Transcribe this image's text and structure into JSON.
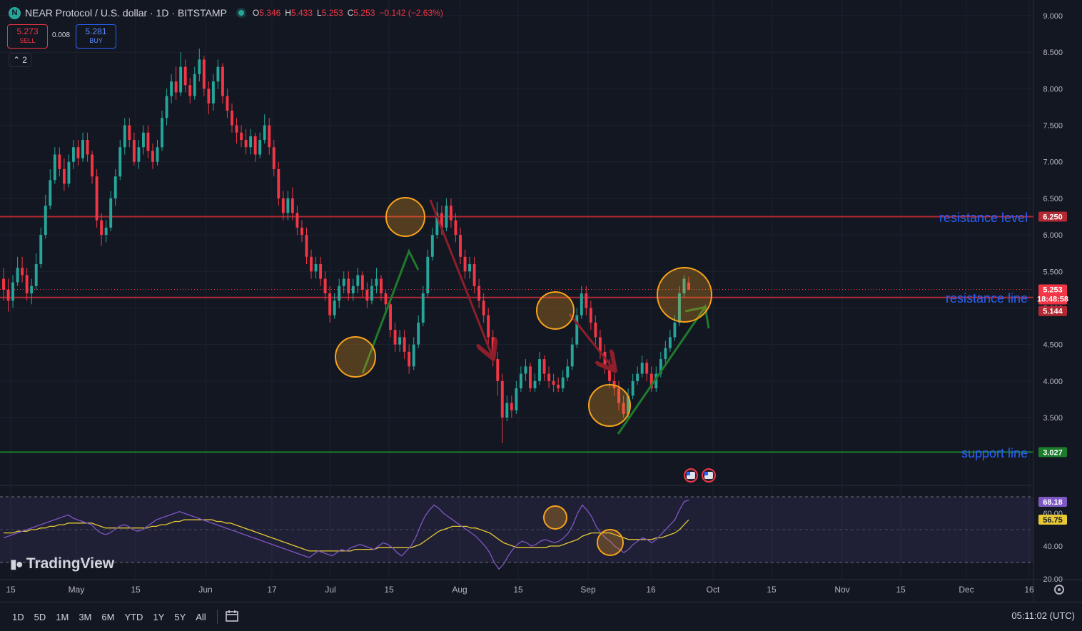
{
  "header": {
    "logo_letter": "N",
    "symbol_title": "NEAR Protocol / U.S. dollar · 1D · BITSTAMP",
    "open_label": "O",
    "open": "5.346",
    "high_label": "H",
    "high": "5.433",
    "low_label": "L",
    "low": "5.253",
    "close_label": "C",
    "close": "5.253",
    "change": "−0.142 (−2.63%)"
  },
  "trade": {
    "sell_price": "5.273",
    "sell_label": "SELL",
    "spread": "0.008",
    "buy_price": "5.281",
    "buy_label": "BUY"
  },
  "indicator_collapse": {
    "icon": "chevron-up-icon",
    "count": "2"
  },
  "watermark": {
    "icon": "tradingview-logo-icon",
    "text": "TradingView"
  },
  "bottom_bar": {
    "timeframes": [
      "1D",
      "5D",
      "1M",
      "3M",
      "6M",
      "YTD",
      "1Y",
      "5Y",
      "All"
    ],
    "compare_icon": "calendar-range-icon",
    "clock": "05:11:02 (UTC)"
  },
  "colors": {
    "up": "#26a69a",
    "down": "#f23645",
    "bg": "#131722",
    "grid": "#1e222d",
    "resistance": "#b22833",
    "support": "#1b7c2c",
    "annotation_text": "#2962ff",
    "circle": "#f7a21b",
    "rsi": "#7e57c2",
    "rsi_ma": "#e6c935"
  },
  "chart_data": [
    {
      "type": "candlestick",
      "x_ticks": [
        "15",
        "May",
        "15",
        "Jun",
        "17",
        "Jul",
        "15",
        "Aug",
        "15",
        "Sep",
        "16",
        "Oct",
        "15",
        "Nov",
        "15",
        "Dec",
        "16"
      ],
      "y_ticks": [
        "9.000",
        "8.500",
        "8.000",
        "7.500",
        "7.000",
        "6.500",
        "6.000",
        "5.500",
        "5.000",
        "4.500",
        "4.000",
        "3.500"
      ],
      "ylim": [
        3.0,
        9.0
      ],
      "last_price": "5.253",
      "countdown": "18:48:58",
      "levels": [
        {
          "name": "resistance level",
          "value": 6.25,
          "label": "6.250"
        },
        {
          "name": "resistance line",
          "value": 5.144,
          "label": "5.144"
        },
        {
          "name": "support line",
          "value": 3.027,
          "label": "3.027"
        }
      ],
      "candles": [
        [
          5.4,
          5.25,
          5.55,
          5.1
        ],
        [
          5.25,
          5.1,
          5.4,
          4.95
        ],
        [
          5.1,
          5.35,
          5.45,
          5.0
        ],
        [
          5.35,
          5.55,
          5.7,
          5.3
        ],
        [
          5.55,
          5.45,
          5.7,
          5.35
        ],
        [
          5.45,
          5.2,
          5.55,
          5.1
        ],
        [
          5.2,
          5.3,
          5.4,
          5.05
        ],
        [
          5.3,
          5.6,
          5.75,
          5.25
        ],
        [
          5.6,
          6.0,
          6.1,
          5.55
        ],
        [
          6.0,
          6.4,
          6.55,
          5.95
        ],
        [
          6.4,
          6.75,
          6.9,
          6.35
        ],
        [
          6.75,
          7.1,
          7.2,
          6.7
        ],
        [
          7.1,
          6.9,
          7.2,
          6.8
        ],
        [
          6.9,
          6.7,
          7.05,
          6.6
        ],
        [
          6.7,
          7.0,
          7.1,
          6.65
        ],
        [
          7.0,
          7.2,
          7.3,
          6.9
        ],
        [
          7.2,
          7.05,
          7.3,
          6.95
        ],
        [
          7.05,
          7.3,
          7.4,
          7.0
        ],
        [
          7.3,
          7.1,
          7.4,
          7.0
        ],
        [
          7.1,
          6.8,
          7.15,
          6.7
        ],
        [
          6.8,
          6.2,
          6.9,
          6.1
        ],
        [
          6.2,
          6.0,
          6.3,
          5.85
        ],
        [
          6.0,
          6.1,
          6.2,
          5.9
        ],
        [
          6.1,
          6.5,
          6.6,
          6.05
        ],
        [
          6.5,
          6.8,
          6.9,
          6.4
        ],
        [
          6.8,
          7.2,
          7.3,
          6.75
        ],
        [
          7.2,
          7.5,
          7.6,
          7.1
        ],
        [
          7.5,
          7.3,
          7.6,
          7.2
        ],
        [
          7.3,
          7.0,
          7.4,
          6.95
        ],
        [
          7.0,
          7.2,
          7.3,
          6.9
        ],
        [
          7.2,
          7.4,
          7.5,
          7.1
        ],
        [
          7.4,
          7.15,
          7.5,
          7.05
        ],
        [
          7.15,
          7.0,
          7.25,
          6.9
        ],
        [
          7.0,
          7.2,
          7.3,
          6.95
        ],
        [
          7.2,
          7.6,
          7.7,
          7.15
        ],
        [
          7.6,
          7.9,
          8.0,
          7.5
        ],
        [
          7.9,
          8.1,
          8.2,
          7.8
        ],
        [
          8.1,
          7.95,
          8.3,
          7.85
        ],
        [
          7.95,
          8.3,
          8.5,
          7.9
        ],
        [
          8.3,
          8.05,
          8.4,
          7.95
        ],
        [
          8.05,
          7.9,
          8.15,
          7.8
        ],
        [
          7.9,
          8.2,
          8.3,
          7.85
        ],
        [
          8.2,
          8.4,
          8.55,
          8.1
        ],
        [
          8.4,
          8.0,
          8.45,
          7.9
        ],
        [
          8.0,
          7.8,
          8.1,
          7.65
        ],
        [
          7.8,
          8.1,
          8.2,
          7.7
        ],
        [
          8.1,
          8.3,
          8.4,
          8.0
        ],
        [
          8.3,
          7.9,
          8.35,
          7.8
        ],
        [
          7.9,
          7.7,
          8.0,
          7.6
        ],
        [
          7.7,
          7.5,
          7.8,
          7.4
        ],
        [
          7.5,
          7.4,
          7.6,
          7.25
        ],
        [
          7.4,
          7.3,
          7.5,
          7.2
        ],
        [
          7.3,
          7.2,
          7.45,
          7.1
        ],
        [
          7.2,
          7.35,
          7.45,
          7.1
        ],
        [
          7.35,
          7.1,
          7.4,
          7.0
        ],
        [
          7.1,
          7.3,
          7.4,
          7.05
        ],
        [
          7.3,
          7.5,
          7.65,
          7.25
        ],
        [
          7.5,
          7.2,
          7.6,
          7.1
        ],
        [
          7.2,
          6.9,
          7.3,
          6.8
        ],
        [
          6.9,
          6.5,
          7.0,
          6.4
        ],
        [
          6.5,
          6.3,
          6.6,
          6.2
        ],
        [
          6.3,
          6.5,
          6.6,
          6.2
        ],
        [
          6.5,
          6.3,
          6.65,
          6.2
        ],
        [
          6.3,
          6.1,
          6.4,
          6.0
        ],
        [
          6.1,
          6.0,
          6.2,
          5.9
        ],
        [
          6.0,
          5.7,
          6.1,
          5.6
        ],
        [
          5.7,
          5.5,
          5.8,
          5.4
        ],
        [
          5.5,
          5.6,
          5.7,
          5.4
        ],
        [
          5.6,
          5.4,
          5.7,
          5.3
        ],
        [
          5.4,
          5.2,
          5.5,
          5.1
        ],
        [
          5.2,
          4.9,
          5.3,
          4.8
        ],
        [
          4.9,
          5.1,
          5.2,
          4.85
        ],
        [
          5.1,
          5.3,
          5.4,
          5.0
        ],
        [
          5.3,
          5.4,
          5.5,
          5.2
        ],
        [
          5.4,
          5.2,
          5.5,
          5.1
        ],
        [
          5.2,
          5.3,
          5.4,
          5.1
        ],
        [
          5.3,
          5.45,
          5.55,
          5.2
        ],
        [
          5.45,
          5.25,
          5.5,
          5.15
        ],
        [
          5.25,
          5.1,
          5.35,
          5.0
        ],
        [
          5.1,
          5.3,
          5.4,
          5.05
        ],
        [
          5.3,
          5.4,
          5.55,
          5.2
        ],
        [
          5.4,
          5.2,
          5.45,
          5.1
        ],
        [
          5.2,
          5.05,
          5.25,
          4.95
        ],
        [
          5.05,
          4.7,
          5.1,
          4.6
        ],
        [
          4.7,
          4.5,
          4.8,
          4.4
        ],
        [
          4.5,
          4.6,
          4.7,
          4.4
        ],
        [
          4.6,
          4.4,
          4.7,
          4.3
        ],
        [
          4.4,
          4.2,
          4.5,
          4.1
        ],
        [
          4.2,
          4.5,
          4.6,
          4.15
        ],
        [
          4.5,
          4.8,
          4.9,
          4.45
        ],
        [
          4.8,
          5.2,
          5.3,
          4.75
        ],
        [
          5.2,
          5.7,
          5.8,
          5.15
        ],
        [
          5.7,
          6.0,
          6.1,
          5.65
        ],
        [
          6.0,
          6.3,
          6.45,
          5.95
        ],
        [
          6.3,
          6.1,
          6.4,
          6.0
        ],
        [
          6.1,
          6.4,
          6.5,
          6.05
        ],
        [
          6.4,
          6.2,
          6.5,
          6.1
        ],
        [
          6.2,
          6.0,
          6.3,
          5.9
        ],
        [
          6.0,
          5.7,
          6.1,
          5.6
        ],
        [
          5.7,
          5.5,
          5.8,
          5.4
        ],
        [
          5.5,
          5.6,
          5.7,
          5.4
        ],
        [
          5.6,
          5.3,
          5.7,
          5.2
        ],
        [
          5.3,
          5.1,
          5.4,
          5.0
        ],
        [
          5.1,
          4.9,
          5.2,
          4.8
        ],
        [
          4.9,
          4.6,
          5.0,
          4.5
        ],
        [
          4.6,
          4.3,
          4.7,
          4.2
        ],
        [
          4.3,
          4.0,
          4.4,
          3.8
        ],
        [
          4.0,
          3.5,
          4.1,
          3.15
        ],
        [
          3.5,
          3.7,
          3.8,
          3.45
        ],
        [
          3.7,
          3.6,
          3.8,
          3.5
        ],
        [
          3.6,
          3.9,
          4.0,
          3.55
        ],
        [
          3.9,
          4.1,
          4.2,
          3.85
        ],
        [
          4.1,
          4.2,
          4.3,
          4.0
        ],
        [
          4.2,
          3.9,
          4.25,
          3.85
        ],
        [
          3.9,
          4.0,
          4.1,
          3.85
        ],
        [
          4.0,
          4.3,
          4.4,
          3.95
        ],
        [
          4.3,
          4.1,
          4.35,
          4.0
        ],
        [
          4.1,
          4.0,
          4.2,
          3.9
        ],
        [
          4.0,
          3.95,
          4.1,
          3.85
        ],
        [
          3.95,
          3.9,
          4.05,
          3.85
        ],
        [
          3.9,
          4.05,
          4.15,
          3.85
        ],
        [
          4.05,
          4.2,
          4.3,
          4.0
        ],
        [
          4.2,
          4.5,
          4.6,
          4.15
        ],
        [
          4.5,
          4.9,
          5.0,
          4.45
        ],
        [
          4.9,
          5.2,
          5.3,
          4.85
        ],
        [
          5.2,
          5.0,
          5.3,
          4.9
        ],
        [
          5.0,
          4.8,
          5.1,
          4.7
        ],
        [
          4.8,
          4.6,
          4.9,
          4.5
        ],
        [
          4.6,
          4.4,
          4.7,
          4.3
        ],
        [
          4.4,
          4.2,
          4.5,
          4.1
        ],
        [
          4.2,
          4.0,
          4.3,
          3.9
        ],
        [
          4.0,
          3.9,
          4.1,
          3.8
        ],
        [
          3.9,
          3.7,
          4.0,
          3.6
        ],
        [
          3.7,
          3.55,
          3.8,
          3.5
        ],
        [
          3.55,
          3.8,
          3.9,
          3.5
        ],
        [
          3.8,
          4.0,
          4.1,
          3.75
        ],
        [
          4.0,
          4.1,
          4.2,
          3.95
        ],
        [
          4.1,
          4.25,
          4.35,
          4.05
        ],
        [
          4.25,
          4.1,
          4.3,
          4.0
        ],
        [
          4.1,
          3.9,
          4.2,
          3.85
        ],
        [
          3.9,
          4.1,
          4.2,
          3.85
        ],
        [
          4.1,
          4.3,
          4.4,
          4.05
        ],
        [
          4.3,
          4.45,
          4.55,
          4.25
        ],
        [
          4.45,
          4.6,
          4.7,
          4.4
        ],
        [
          4.6,
          4.8,
          4.9,
          4.55
        ],
        [
          4.8,
          5.2,
          5.3,
          4.75
        ],
        [
          5.2,
          5.4,
          5.45,
          5.15
        ],
        [
          5.35,
          5.25,
          5.43,
          5.25
        ]
      ]
    },
    {
      "type": "line",
      "name": "RSI",
      "y_ticks": [
        "60.00",
        "40.00",
        "20.00"
      ],
      "ylim": [
        20,
        80
      ],
      "band": [
        30,
        70
      ],
      "rsi_value": "68.18",
      "ma_value": "56.75",
      "values": [
        45,
        46,
        47,
        48,
        49,
        50,
        51,
        52,
        53,
        54,
        55,
        56,
        57,
        58,
        59,
        57,
        56,
        55,
        54,
        53,
        50,
        48,
        47,
        48,
        50,
        52,
        53,
        52,
        50,
        49,
        50,
        52,
        54,
        56,
        57,
        58,
        59,
        60,
        61,
        60,
        59,
        58,
        57,
        56,
        55,
        54,
        53,
        52,
        51,
        50,
        49,
        48,
        47,
        46,
        45,
        44,
        43,
        42,
        41,
        40,
        39,
        38,
        37,
        36,
        35,
        34,
        33,
        35,
        37,
        36,
        35,
        34,
        36,
        38,
        37,
        39,
        40,
        41,
        40,
        39,
        38,
        40,
        42,
        41,
        39,
        36,
        34,
        37,
        40,
        45,
        52,
        58,
        62,
        65,
        63,
        60,
        58,
        56,
        54,
        52,
        50,
        48,
        46,
        43,
        40,
        36,
        30,
        26,
        29,
        34,
        38,
        41,
        43,
        42,
        40,
        41,
        43,
        44,
        43,
        42,
        43,
        45,
        48,
        53,
        60,
        65,
        62,
        58,
        52,
        48,
        45,
        43,
        40,
        38,
        36,
        38,
        41,
        43,
        45,
        44,
        42,
        44,
        47,
        50,
        53,
        56,
        62,
        67,
        68
      ],
      "ma_values": [
        48,
        48,
        48,
        49,
        49,
        49,
        50,
        50,
        51,
        51,
        52,
        52,
        53,
        53,
        54,
        54,
        54,
        54,
        54,
        54,
        53,
        52,
        51,
        51,
        51,
        51,
        51,
        51,
        51,
        51,
        51,
        51,
        52,
        52,
        53,
        53,
        54,
        55,
        55,
        56,
        56,
        56,
        56,
        56,
        56,
        56,
        55,
        55,
        54,
        54,
        53,
        52,
        51,
        50,
        49,
        48,
        47,
        46,
        45,
        44,
        43,
        42,
        41,
        40,
        39,
        38,
        37,
        37,
        37,
        37,
        37,
        37,
        37,
        37,
        37,
        37,
        38,
        38,
        38,
        38,
        38,
        39,
        39,
        39,
        39,
        39,
        39,
        39,
        39,
        40,
        41,
        43,
        45,
        47,
        49,
        50,
        51,
        52,
        52,
        52,
        52,
        51,
        51,
        50,
        49,
        48,
        46,
        44,
        42,
        41,
        40,
        39,
        39,
        39,
        39,
        39,
        39,
        39,
        40,
        40,
        40,
        41,
        42,
        43,
        44,
        46,
        47,
        48,
        48,
        48,
        48,
        48,
        47,
        46,
        45,
        44,
        44,
        44,
        44,
        44,
        44,
        45,
        45,
        46,
        47,
        48,
        50,
        53,
        56
      ]
    }
  ],
  "annotations": {
    "resistance_level_text": "resistance level",
    "resistance_line_text": "resistance line",
    "support_line_text": "support line",
    "event_icons": [
      "us-flag-icon",
      "us-flag-icon"
    ]
  },
  "settings_icon": "gear-icon"
}
